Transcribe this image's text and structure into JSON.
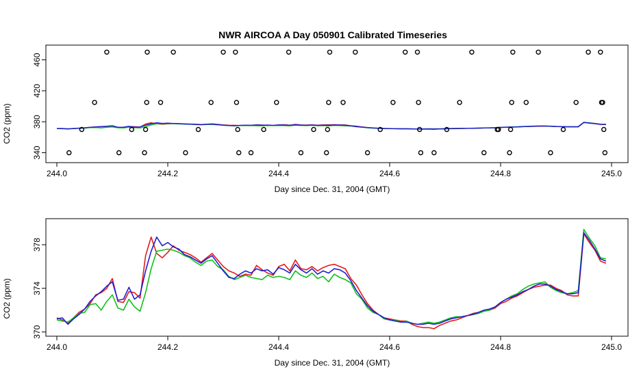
{
  "chart_data": [
    {
      "type": "scatter+line",
      "title": "NWR AIRCOA A  Day 050901  Calibrated Timeseries",
      "xlabel": "Day since Dec. 31, 2004 (GMT)",
      "ylabel": "CO2 (ppm)",
      "xlim": [
        244.0,
        245.0
      ],
      "ylim": [
        336,
        472
      ],
      "xticks": [
        "244.0",
        "244.2",
        "244.4",
        "244.6",
        "244.8",
        "245.0"
      ],
      "yticks": [
        "340",
        "380",
        "420",
        "460"
      ],
      "calibration_points": [
        {
          "x": 244.022,
          "y": 340
        },
        {
          "x": 244.045,
          "y": 370
        },
        {
          "x": 244.068,
          "y": 405
        },
        {
          "x": 244.09,
          "y": 470
        },
        {
          "x": 244.112,
          "y": 340
        },
        {
          "x": 244.135,
          "y": 370
        },
        {
          "x": 244.158,
          "y": 340
        },
        {
          "x": 244.16,
          "y": 370
        },
        {
          "x": 244.162,
          "y": 405
        },
        {
          "x": 244.163,
          "y": 470
        },
        {
          "x": 244.187,
          "y": 405
        },
        {
          "x": 244.21,
          "y": 470
        },
        {
          "x": 244.232,
          "y": 340
        },
        {
          "x": 244.255,
          "y": 370
        },
        {
          "x": 244.278,
          "y": 405
        },
        {
          "x": 244.3,
          "y": 470
        },
        {
          "x": 244.322,
          "y": 470
        },
        {
          "x": 244.324,
          "y": 405
        },
        {
          "x": 244.326,
          "y": 370
        },
        {
          "x": 244.328,
          "y": 340
        },
        {
          "x": 244.35,
          "y": 340
        },
        {
          "x": 244.373,
          "y": 370
        },
        {
          "x": 244.396,
          "y": 405
        },
        {
          "x": 244.418,
          "y": 470
        },
        {
          "x": 244.44,
          "y": 340
        },
        {
          "x": 244.463,
          "y": 370
        },
        {
          "x": 244.486,
          "y": 340
        },
        {
          "x": 244.488,
          "y": 370
        },
        {
          "x": 244.49,
          "y": 405
        },
        {
          "x": 244.492,
          "y": 470
        },
        {
          "x": 244.516,
          "y": 405
        },
        {
          "x": 244.538,
          "y": 470
        },
        {
          "x": 244.56,
          "y": 340
        },
        {
          "x": 244.583,
          "y": 370
        },
        {
          "x": 244.606,
          "y": 405
        },
        {
          "x": 244.628,
          "y": 470
        },
        {
          "x": 244.65,
          "y": 470
        },
        {
          "x": 244.652,
          "y": 405
        },
        {
          "x": 244.654,
          "y": 370
        },
        {
          "x": 244.656,
          "y": 340
        },
        {
          "x": 244.68,
          "y": 340
        },
        {
          "x": 244.703,
          "y": 370
        },
        {
          "x": 244.726,
          "y": 405
        },
        {
          "x": 244.748,
          "y": 470
        },
        {
          "x": 244.77,
          "y": 340
        },
        {
          "x": 244.794,
          "y": 370
        },
        {
          "x": 244.796,
          "y": 370
        },
        {
          "x": 244.816,
          "y": 340
        },
        {
          "x": 244.818,
          "y": 370
        },
        {
          "x": 244.82,
          "y": 405
        },
        {
          "x": 244.822,
          "y": 470
        },
        {
          "x": 244.846,
          "y": 405
        },
        {
          "x": 244.868,
          "y": 470
        },
        {
          "x": 244.89,
          "y": 340
        },
        {
          "x": 244.913,
          "y": 370
        },
        {
          "x": 244.936,
          "y": 405
        },
        {
          "x": 244.958,
          "y": 470
        },
        {
          "x": 244.98,
          "y": 470
        },
        {
          "x": 244.982,
          "y": 405
        },
        {
          "x": 244.984,
          "y": 405
        },
        {
          "x": 244.986,
          "y": 370
        },
        {
          "x": 244.988,
          "y": 340
        }
      ]
    },
    {
      "type": "line",
      "title": "",
      "xlabel": "Day since Dec. 31, 2004 (GMT)",
      "ylabel": "CO2 (ppm)",
      "xlim": [
        244.0,
        245.0
      ],
      "ylim": [
        369.8,
        380.2
      ],
      "xticks": [
        "244.0",
        "244.2",
        "244.4",
        "244.6",
        "244.8",
        "245.0"
      ],
      "yticks": [
        "370",
        "374",
        "378"
      ],
      "x": [
        244.0,
        244.01,
        244.02,
        244.03,
        244.04,
        244.05,
        244.06,
        244.07,
        244.08,
        244.09,
        244.1,
        244.11,
        244.12,
        244.13,
        244.14,
        244.15,
        244.16,
        244.17,
        244.18,
        244.19,
        244.2,
        244.21,
        244.22,
        244.23,
        244.24,
        244.25,
        244.26,
        244.27,
        244.28,
        244.29,
        244.3,
        244.31,
        244.32,
        244.33,
        244.34,
        244.35,
        244.36,
        244.37,
        244.38,
        244.39,
        244.4,
        244.41,
        244.42,
        244.43,
        244.44,
        244.45,
        244.46,
        244.47,
        244.48,
        244.49,
        244.5,
        244.51,
        244.52,
        244.53,
        244.54,
        244.55,
        244.56,
        244.57,
        244.58,
        244.59,
        244.6,
        244.61,
        244.62,
        244.63,
        244.64,
        244.65,
        244.66,
        244.67,
        244.68,
        244.69,
        244.7,
        244.71,
        244.72,
        244.73,
        244.74,
        244.75,
        244.76,
        244.77,
        244.78,
        244.79,
        244.8,
        244.81,
        244.82,
        244.83,
        244.84,
        244.85,
        244.86,
        244.87,
        244.88,
        244.89,
        244.9,
        244.91,
        244.92,
        244.93,
        244.94,
        244.95,
        244.96,
        244.97,
        244.98,
        244.99
      ],
      "series": [
        {
          "name": "red",
          "color": "#e41a1c",
          "values": [
            371.3,
            371.1,
            370.8,
            371.3,
            371.8,
            372.1,
            372.6,
            373.4,
            373.6,
            374.0,
            374.9,
            372.8,
            372.7,
            373.7,
            373.6,
            373.1,
            377.0,
            378.7,
            377.2,
            376.8,
            377.3,
            377.9,
            377.5,
            377.3,
            377.1,
            376.8,
            376.4,
            376.8,
            377.2,
            376.6,
            376.0,
            375.6,
            375.4,
            375.1,
            375.3,
            375.2,
            376.1,
            375.7,
            375.4,
            375.2,
            376.0,
            376.2,
            375.6,
            376.6,
            375.8,
            375.7,
            376.0,
            375.6,
            375.9,
            376.1,
            376.2,
            376.0,
            375.8,
            374.9,
            374.3,
            373.4,
            372.6,
            372.0,
            371.6,
            371.3,
            371.2,
            371.1,
            371.0,
            371.0,
            370.7,
            370.5,
            370.4,
            370.4,
            370.3,
            370.6,
            370.8,
            371.0,
            371.1,
            371.3,
            371.5,
            371.7,
            371.8,
            371.9,
            372.0,
            372.2,
            372.6,
            372.8,
            373.1,
            373.3,
            373.6,
            373.9,
            374.1,
            374.2,
            374.3,
            374.3,
            374.0,
            373.8,
            373.4,
            373.3,
            373.3,
            379.0,
            378.2,
            377.5,
            376.5,
            376.3
          ]
        },
        {
          "name": "green",
          "color": "#0fbf1a",
          "values": [
            371.1,
            371.0,
            370.9,
            371.3,
            371.7,
            371.8,
            372.5,
            372.6,
            372.0,
            372.8,
            373.4,
            372.2,
            372.0,
            373.0,
            372.3,
            371.9,
            373.6,
            375.8,
            377.4,
            377.5,
            377.6,
            377.5,
            377.3,
            377.0,
            376.8,
            376.4,
            376.1,
            376.5,
            376.6,
            376.0,
            375.7,
            375.1,
            374.8,
            375.0,
            375.2,
            375.0,
            374.9,
            374.8,
            375.2,
            375.0,
            375.1,
            375.0,
            374.8,
            375.6,
            375.2,
            375.0,
            375.4,
            374.9,
            375.1,
            374.6,
            375.3,
            375.0,
            374.8,
            374.5,
            373.5,
            373.0,
            372.2,
            371.8,
            371.6,
            371.2,
            371.1,
            371.1,
            370.9,
            371.0,
            370.8,
            370.7,
            370.8,
            370.9,
            370.8,
            370.9,
            371.1,
            371.3,
            371.4,
            371.4,
            371.5,
            371.6,
            371.7,
            371.9,
            372.0,
            372.3,
            372.7,
            373.0,
            373.3,
            373.5,
            373.9,
            374.2,
            374.4,
            374.5,
            374.6,
            374.1,
            373.8,
            373.6,
            373.5,
            373.6,
            373.8,
            379.4,
            378.6,
            377.9,
            376.8,
            376.7
          ]
        },
        {
          "name": "blue",
          "color": "#1f1fd0",
          "values": [
            371.2,
            371.3,
            370.7,
            371.2,
            371.6,
            372.1,
            372.8,
            373.3,
            373.7,
            374.2,
            374.6,
            372.9,
            373.0,
            374.1,
            373.0,
            373.4,
            375.6,
            377.4,
            378.7,
            377.9,
            378.2,
            377.8,
            377.6,
            377.1,
            376.9,
            376.6,
            376.3,
            376.7,
            377.0,
            376.3,
            375.6,
            375.0,
            374.9,
            375.3,
            375.6,
            375.4,
            375.8,
            375.6,
            375.7,
            375.3,
            375.9,
            375.7,
            375.4,
            376.2,
            375.7,
            375.4,
            375.8,
            375.3,
            375.6,
            375.4,
            375.8,
            375.7,
            375.4,
            374.7,
            373.8,
            373.1,
            372.4,
            371.9,
            371.6,
            371.3,
            371.1,
            371.0,
            370.9,
            370.9,
            370.8,
            370.7,
            370.7,
            370.8,
            370.7,
            370.8,
            371.0,
            371.2,
            371.3,
            371.4,
            371.5,
            371.6,
            371.8,
            372.0,
            372.1,
            372.3,
            372.7,
            373.0,
            373.2,
            373.4,
            373.7,
            373.9,
            374.2,
            374.4,
            374.4,
            374.2,
            373.9,
            373.7,
            373.5,
            373.5,
            373.6,
            379.1,
            378.4,
            377.6,
            376.7,
            376.5
          ]
        }
      ]
    }
  ]
}
